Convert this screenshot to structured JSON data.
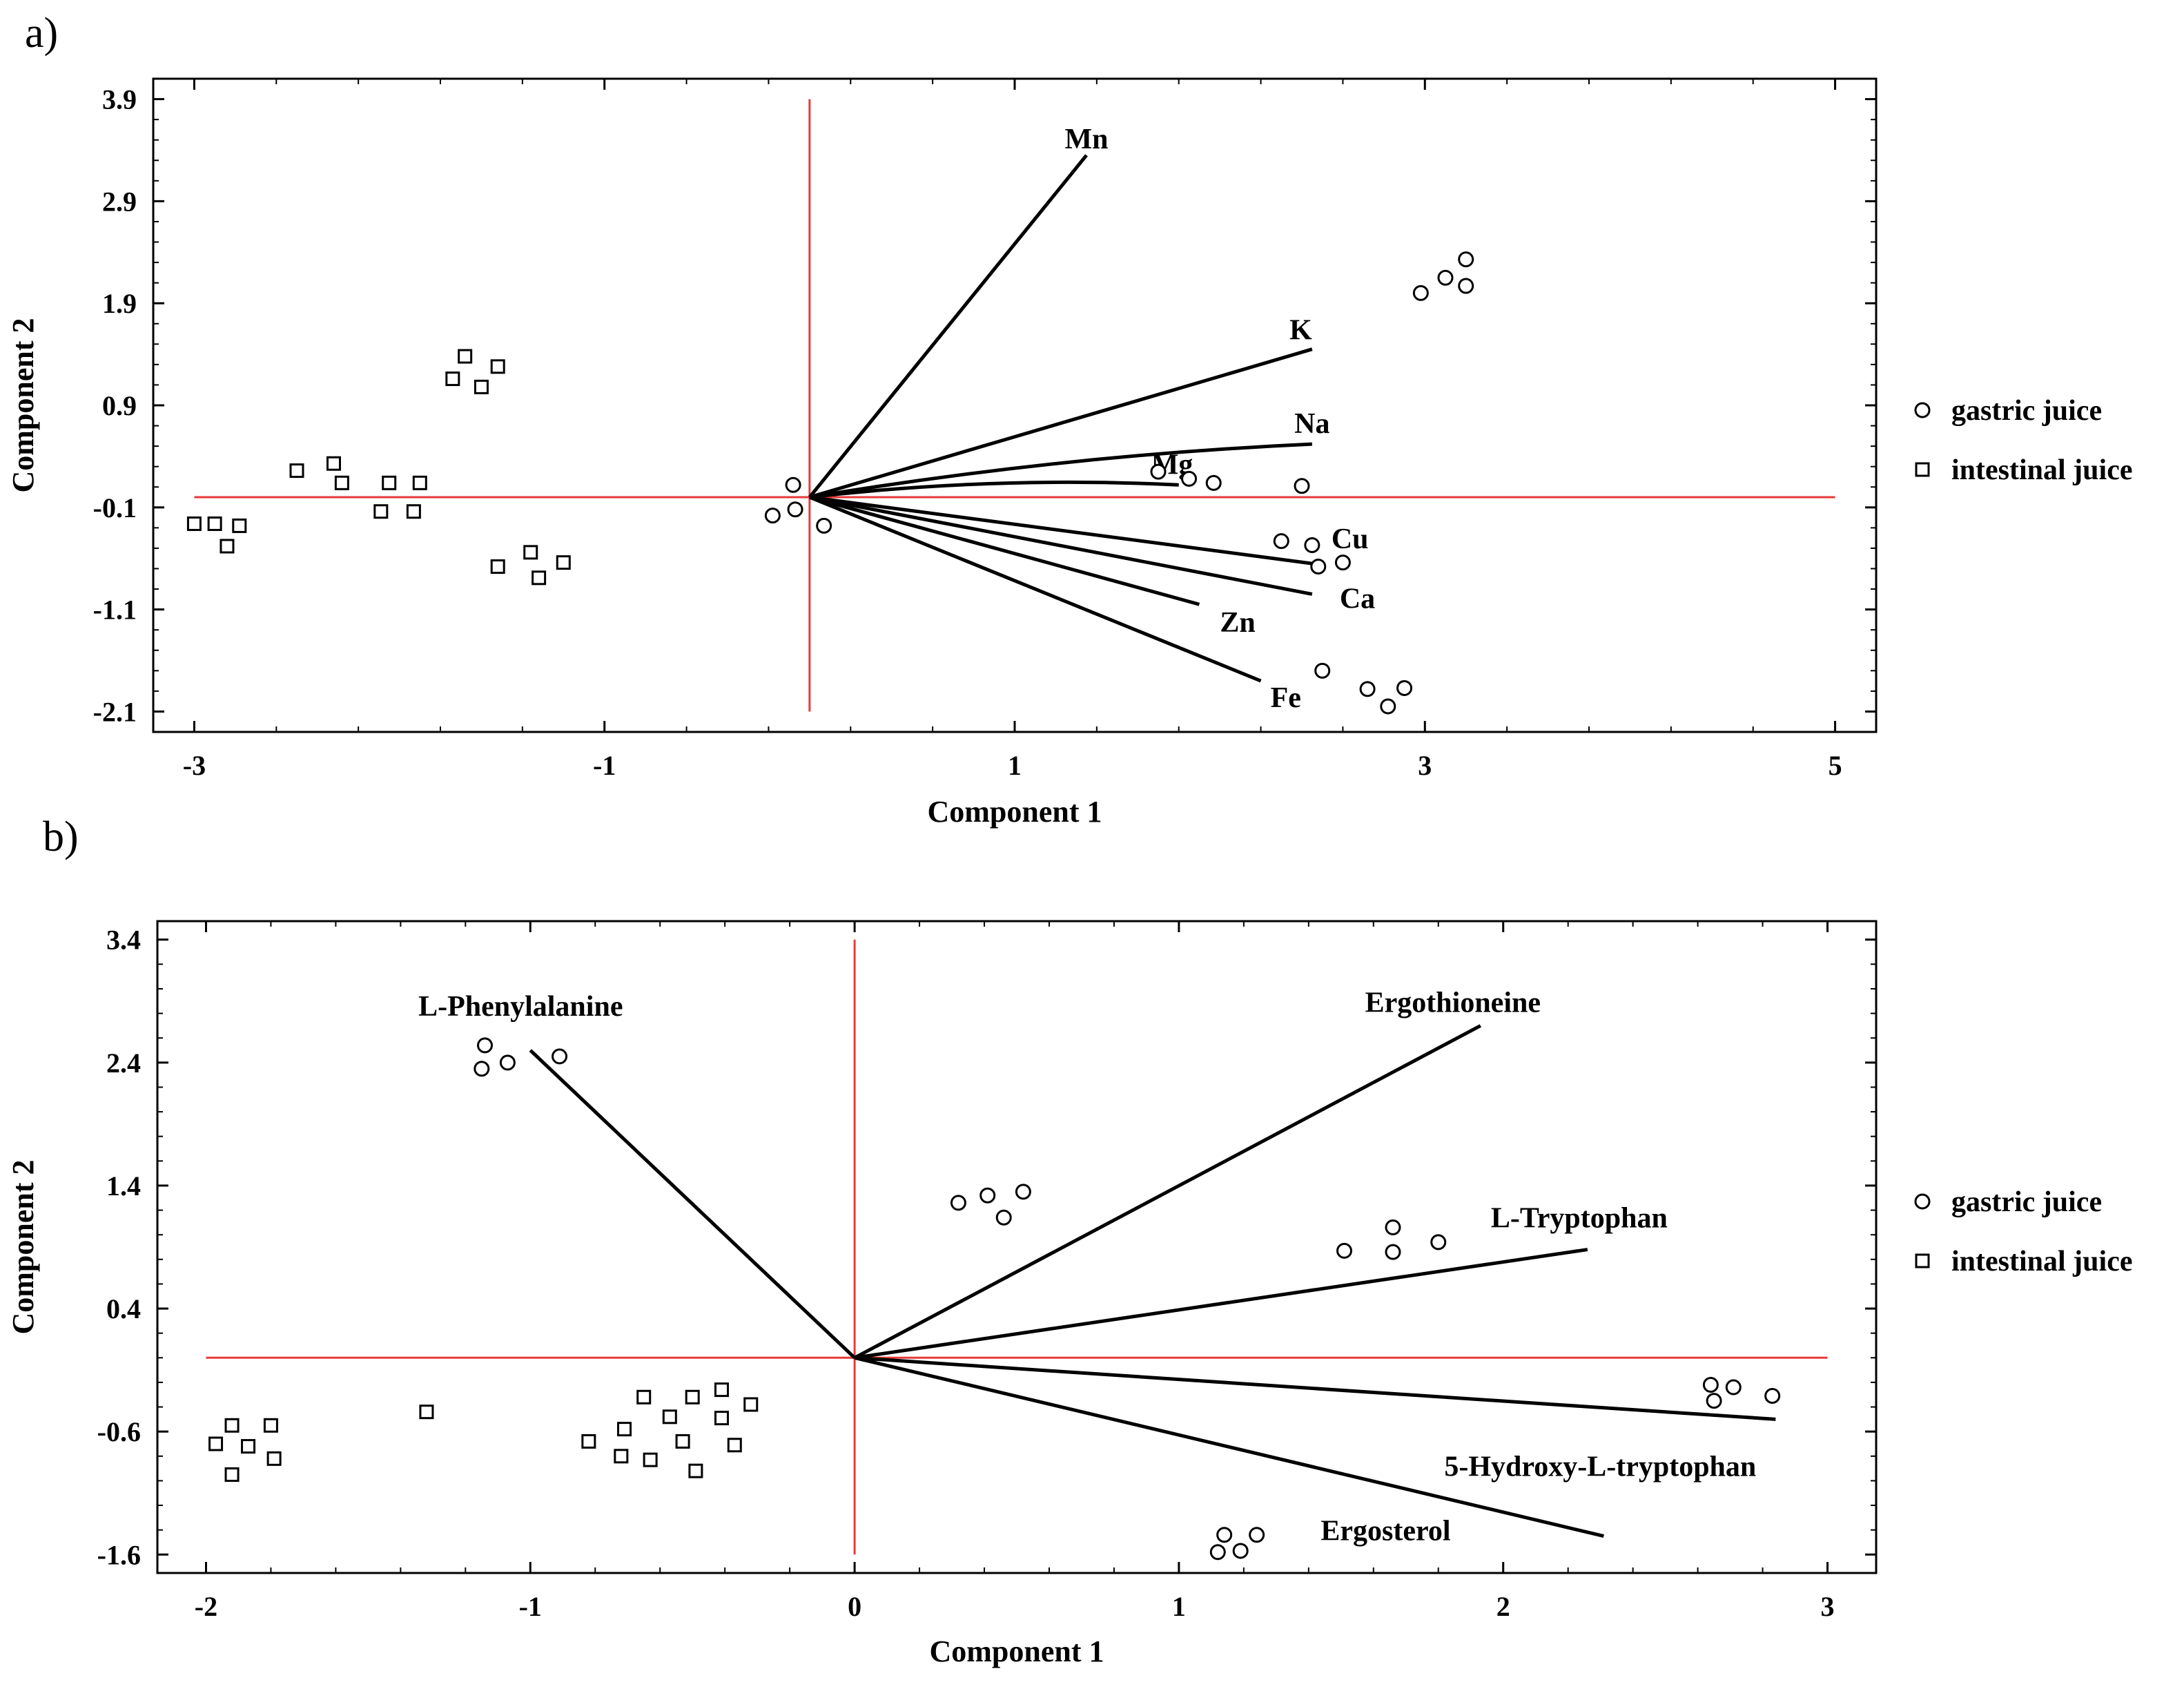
{
  "chart_data": [
    {
      "panel_label": "a)",
      "type": "scatter",
      "subtype": "biplot",
      "xlabel": "Component 1",
      "ylabel": "Component 2",
      "xlim": [
        -3.2,
        5.2
      ],
      "ylim": [
        -2.3,
        4.1
      ],
      "xticks": [
        -3,
        -1,
        1,
        3,
        5
      ],
      "xtick_labels": [
        "-3",
        "-1",
        "1",
        "3",
        "5"
      ],
      "yticks": [
        3.9,
        2.9,
        1.9,
        0.9,
        -0.1,
        -1.1,
        -2.1
      ],
      "ytick_labels": [
        "3.9",
        "2.9",
        "1.9",
        "0.9",
        "-0.1",
        "-1.1",
        "-2.1"
      ],
      "reference_lines": {
        "x": 0,
        "y": 0,
        "color": "#e83a3a",
        "x_extent": [
          -3,
          5
        ],
        "y_extent": [
          -2.1,
          3.9
        ]
      },
      "vectors": [
        {
          "name": "Mn",
          "x": 1.35,
          "y": 3.35,
          "curved": false
        },
        {
          "name": "K",
          "x": 2.45,
          "y": 1.45,
          "curved": false
        },
        {
          "name": "Na",
          "x": 2.45,
          "y": 0.52,
          "curved": true
        },
        {
          "name": "Mg",
          "x": 1.8,
          "y": 0.12,
          "curved": true
        },
        {
          "name": "Cu",
          "x": 2.45,
          "y": -0.65,
          "curved": false
        },
        {
          "name": "Ca",
          "x": 2.45,
          "y": -0.95,
          "curved": false
        },
        {
          "name": "Zn",
          "x": 1.9,
          "y": -1.05,
          "curved": false
        },
        {
          "name": "Fe",
          "x": 2.2,
          "y": -1.8,
          "curved": false
        }
      ],
      "series": [
        {
          "name": "gastric juice",
          "marker": "circle",
          "points": [
            [
              -0.08,
              0.12
            ],
            [
              -0.18,
              -0.18
            ],
            [
              -0.07,
              -0.12
            ],
            [
              0.07,
              -0.28
            ],
            [
              1.7,
              0.25
            ],
            [
              1.85,
              0.18
            ],
            [
              1.97,
              0.14
            ],
            [
              2.4,
              0.11
            ],
            [
              2.3,
              -0.43
            ],
            [
              2.45,
              -0.47
            ],
            [
              2.48,
              -0.68
            ],
            [
              2.6,
              -0.64
            ],
            [
              2.98,
              2.0
            ],
            [
              3.1,
              2.15
            ],
            [
              3.2,
              2.07
            ],
            [
              3.2,
              2.33
            ],
            [
              2.5,
              -1.7
            ],
            [
              2.72,
              -1.88
            ],
            [
              2.82,
              -2.05
            ],
            [
              2.9,
              -1.87
            ]
          ]
        },
        {
          "name": "intestinal juice",
          "marker": "square",
          "points": [
            [
              -3.0,
              -0.26
            ],
            [
              -2.9,
              -0.26
            ],
            [
              -2.78,
              -0.28
            ],
            [
              -2.84,
              -0.48
            ],
            [
              -2.5,
              0.26
            ],
            [
              -2.32,
              0.33
            ],
            [
              -2.28,
              0.14
            ],
            [
              -2.05,
              0.14
            ],
            [
              -1.9,
              0.14
            ],
            [
              -2.09,
              -0.14
            ],
            [
              -1.93,
              -0.14
            ],
            [
              -1.74,
              1.16
            ],
            [
              -1.68,
              1.38
            ],
            [
              -1.6,
              1.08
            ],
            [
              -1.52,
              1.28
            ],
            [
              -1.52,
              -0.68
            ],
            [
              -1.36,
              -0.54
            ],
            [
              -1.32,
              -0.79
            ],
            [
              -1.2,
              -0.64
            ]
          ]
        }
      ],
      "legend": {
        "position": "right",
        "entries": [
          "gastric juice",
          "intestinal juice"
        ]
      }
    },
    {
      "panel_label": "b)",
      "type": "scatter",
      "subtype": "biplot",
      "xlabel": "Component 1",
      "ylabel": "Component 2",
      "xlim": [
        -2.15,
        3.15
      ],
      "ylim": [
        -1.75,
        3.55
      ],
      "xticks": [
        -2,
        -1,
        0,
        1,
        2,
        3
      ],
      "xtick_labels": [
        "-2",
        "-1",
        "0",
        "1",
        "2",
        "3"
      ],
      "yticks": [
        3.4,
        2.4,
        1.4,
        0.4,
        -0.6,
        -1.6
      ],
      "ytick_labels": [
        "3.4",
        "2.4",
        "1.4",
        "0.4",
        "-0.6",
        "-1.6"
      ],
      "reference_lines": {
        "x": 0,
        "y": 0,
        "color": "#e83a3a",
        "x_extent": [
          -2,
          3
        ],
        "y_extent": [
          -1.6,
          3.4
        ]
      },
      "vectors": [
        {
          "name": "L-Phenylalanine",
          "x": -1.0,
          "y": 2.5,
          "curved": false
        },
        {
          "name": "Ergothioneine",
          "x": 1.93,
          "y": 2.7,
          "curved": false
        },
        {
          "name": "L-Tryptophan",
          "x": 2.26,
          "y": 0.88,
          "curved": false
        },
        {
          "name": "5-Hydroxy-L-tryptophan",
          "x": 2.84,
          "y": -0.5,
          "curved": false
        },
        {
          "name": "Ergosterol",
          "x": 2.31,
          "y": -1.45,
          "curved": false
        }
      ],
      "series": [
        {
          "name": "gastric juice",
          "marker": "circle",
          "points": [
            [
              -1.14,
              2.54
            ],
            [
              -1.15,
              2.35
            ],
            [
              -1.07,
              2.4
            ],
            [
              -0.91,
              2.45
            ],
            [
              0.32,
              1.26
            ],
            [
              0.41,
              1.32
            ],
            [
              0.46,
              1.14
            ],
            [
              0.52,
              1.35
            ],
            [
              1.51,
              0.87
            ],
            [
              1.66,
              1.06
            ],
            [
              1.66,
              0.86
            ],
            [
              1.8,
              0.94
            ],
            [
              2.64,
              -0.22
            ],
            [
              2.65,
              -0.35
            ],
            [
              2.71,
              -0.24
            ],
            [
              2.83,
              -0.31
            ],
            [
              1.14,
              -1.44
            ],
            [
              1.12,
              -1.58
            ],
            [
              1.19,
              -1.57
            ],
            [
              1.24,
              -1.44
            ]
          ]
        },
        {
          "name": "intestinal juice",
          "marker": "square",
          "points": [
            [
              -1.92,
              -0.55
            ],
            [
              -1.8,
              -0.55
            ],
            [
              -1.97,
              -0.7
            ],
            [
              -1.87,
              -0.72
            ],
            [
              -1.79,
              -0.82
            ],
            [
              -1.92,
              -0.95
            ],
            [
              -1.32,
              -0.44
            ],
            [
              -0.65,
              -0.32
            ],
            [
              -0.5,
              -0.32
            ],
            [
              -0.41,
              -0.26
            ],
            [
              -0.32,
              -0.38
            ],
            [
              -0.57,
              -0.48
            ],
            [
              -0.41,
              -0.49
            ],
            [
              -0.71,
              -0.58
            ],
            [
              -0.82,
              -0.68
            ],
            [
              -0.53,
              -0.68
            ],
            [
              -0.37,
              -0.71
            ],
            [
              -0.72,
              -0.8
            ],
            [
              -0.63,
              -0.83
            ],
            [
              -0.49,
              -0.92
            ]
          ]
        }
      ],
      "legend": {
        "position": "right",
        "entries": [
          "gastric juice",
          "intestinal juice"
        ]
      }
    }
  ]
}
